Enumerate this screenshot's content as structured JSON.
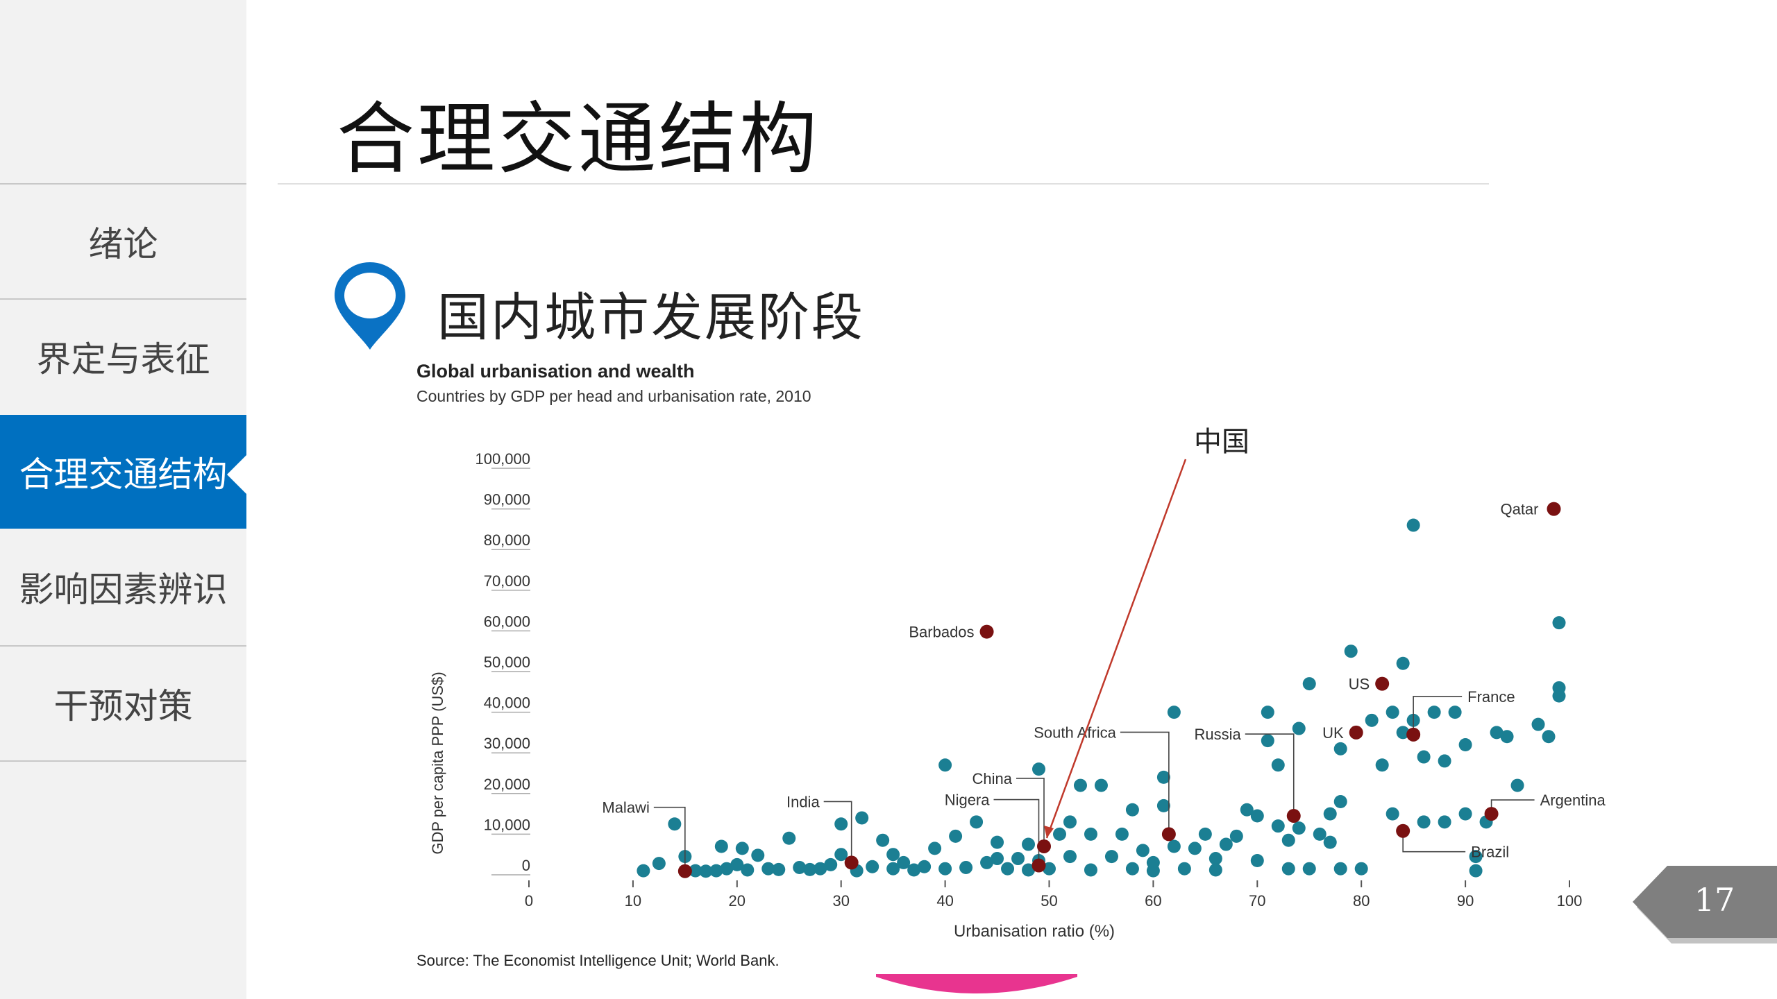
{
  "sidebar": {
    "items": [
      {
        "label": "绪论",
        "active": false
      },
      {
        "label": "界定与表征",
        "active": false
      },
      {
        "label": "合理交通结构",
        "active": true
      },
      {
        "label": "影响因素辨识",
        "active": false
      },
      {
        "label": "干预对策",
        "active": false
      }
    ]
  },
  "page": {
    "title": "合理交通结构",
    "section_title": "国内城市发展阶段",
    "page_number": "17"
  },
  "colors": {
    "accent": "#0070c0",
    "dot": "#1b7f93",
    "highlight": "#7a1111",
    "arrow": "#c0392b",
    "page_tab": "#7f7f7f"
  },
  "chart_data": {
    "type": "scatter",
    "title": "Global urbanisation and wealth",
    "subtitle": "Countries by GDP per head and urbanisation rate, 2010",
    "xlabel": "Urbanisation ratio (%)",
    "ylabel": "GDP per capita PPP (US$)",
    "source": "Source: The Economist Intelligence Unit; World Bank.",
    "xlim": [
      0,
      100
    ],
    "ylim": [
      0,
      100000
    ],
    "x_ticks": [
      "0",
      "10",
      "20",
      "30",
      "40",
      "50",
      "60",
      "70",
      "80",
      "90",
      "100"
    ],
    "y_ticks": [
      "0",
      "10,000",
      "20,000",
      "30,000",
      "40,000",
      "50,000",
      "60,000",
      "70,000",
      "80,000",
      "90,000",
      "100,000"
    ],
    "annotation": "中国",
    "highlighted": [
      {
        "label": "Malawi",
        "x": 15,
        "y": 900
      },
      {
        "label": "India",
        "x": 31,
        "y": 3000
      },
      {
        "label": "Nigera",
        "x": 49,
        "y": 2300
      },
      {
        "label": "China",
        "x": 49.5,
        "y": 7000
      },
      {
        "label": "South Africa",
        "x": 61.5,
        "y": 10000
      },
      {
        "label": "Russia",
        "x": 73.5,
        "y": 14500
      },
      {
        "label": "Barbados",
        "x": 44,
        "y": 59800
      },
      {
        "label": "US",
        "x": 82,
        "y": 47000
      },
      {
        "label": "UK",
        "x": 79.5,
        "y": 35000
      },
      {
        "label": "France",
        "x": 85,
        "y": 34500
      },
      {
        "label": "Argentina",
        "x": 92.5,
        "y": 15000
      },
      {
        "label": "Brazil",
        "x": 84,
        "y": 10800
      },
      {
        "label": "Qatar",
        "x": 98.5,
        "y": 90000
      }
    ],
    "points": [
      [
        11,
        1000
      ],
      [
        12.5,
        2800
      ],
      [
        14,
        12500
      ],
      [
        15,
        4500
      ],
      [
        16,
        1000
      ],
      [
        17,
        900
      ],
      [
        18,
        1000
      ],
      [
        18.5,
        7000
      ],
      [
        19,
        1500
      ],
      [
        20,
        2500
      ],
      [
        20.5,
        6500
      ],
      [
        21,
        1200
      ],
      [
        22,
        4800
      ],
      [
        23,
        1500
      ],
      [
        24,
        1300
      ],
      [
        25,
        9000
      ],
      [
        26,
        1800
      ],
      [
        27,
        1300
      ],
      [
        28,
        1500
      ],
      [
        29,
        2500
      ],
      [
        30,
        5000
      ],
      [
        30,
        12500
      ],
      [
        31.5,
        1000
      ],
      [
        32,
        14000
      ],
      [
        33,
        2000
      ],
      [
        34,
        8500
      ],
      [
        35,
        1500
      ],
      [
        35,
        5000
      ],
      [
        36,
        3000
      ],
      [
        37,
        1200
      ],
      [
        38,
        2000
      ],
      [
        39,
        6500
      ],
      [
        40,
        1500
      ],
      [
        40,
        27000
      ],
      [
        41,
        9500
      ],
      [
        42,
        1800
      ],
      [
        43,
        13000
      ],
      [
        44,
        3000
      ],
      [
        45,
        4000
      ],
      [
        45,
        8000
      ],
      [
        46,
        1500
      ],
      [
        47,
        4000
      ],
      [
        48,
        1200
      ],
      [
        48,
        7500
      ],
      [
        49,
        26000
      ],
      [
        49,
        3500
      ],
      [
        50,
        1500
      ],
      [
        51,
        10000
      ],
      [
        52,
        4500
      ],
      [
        52,
        13000
      ],
      [
        53,
        22000
      ],
      [
        54,
        1200
      ],
      [
        54,
        10000
      ],
      [
        55,
        22000
      ],
      [
        56,
        4500
      ],
      [
        57,
        10000
      ],
      [
        58,
        1500
      ],
      [
        58,
        16000
      ],
      [
        59,
        6000
      ],
      [
        60,
        1000
      ],
      [
        60,
        3000
      ],
      [
        61,
        24000
      ],
      [
        61,
        17000
      ],
      [
        62,
        7000
      ],
      [
        62,
        40000
      ],
      [
        63,
        1500
      ],
      [
        64,
        6500
      ],
      [
        65,
        10000
      ],
      [
        66,
        1200
      ],
      [
        66,
        4000
      ],
      [
        67,
        7500
      ],
      [
        68,
        9500
      ],
      [
        69,
        16000
      ],
      [
        70,
        14500
      ],
      [
        70,
        3500
      ],
      [
        71,
        40000
      ],
      [
        71,
        33000
      ],
      [
        72,
        12000
      ],
      [
        72,
        27000
      ],
      [
        73,
        1500
      ],
      [
        73,
        8500
      ],
      [
        74,
        11500
      ],
      [
        74,
        36000
      ],
      [
        75,
        1500
      ],
      [
        75,
        47000
      ],
      [
        76,
        10000
      ],
      [
        77,
        15000
      ],
      [
        77,
        8000
      ],
      [
        78,
        1500
      ],
      [
        78,
        18000
      ],
      [
        78,
        31000
      ],
      [
        79,
        55000
      ],
      [
        80,
        1500
      ],
      [
        81,
        38000
      ],
      [
        82,
        27000
      ],
      [
        83,
        40000
      ],
      [
        84,
        35000
      ],
      [
        84,
        52000
      ],
      [
        85,
        38000
      ],
      [
        85,
        86000
      ],
      [
        86,
        29000
      ],
      [
        87,
        40000
      ],
      [
        88,
        28000
      ],
      [
        89,
        40000
      ],
      [
        90,
        32000
      ],
      [
        91,
        1000
      ],
      [
        91,
        4500
      ],
      [
        92,
        13000
      ],
      [
        93,
        35000
      ],
      [
        94,
        34000
      ],
      [
        95,
        22000
      ],
      [
        97,
        37000
      ],
      [
        98,
        34000
      ],
      [
        99,
        62000
      ],
      [
        99,
        46000
      ],
      [
        99,
        44000
      ],
      [
        86,
        13000
      ],
      [
        88,
        13000
      ],
      [
        90,
        15000
      ],
      [
        83,
        15000
      ]
    ]
  }
}
